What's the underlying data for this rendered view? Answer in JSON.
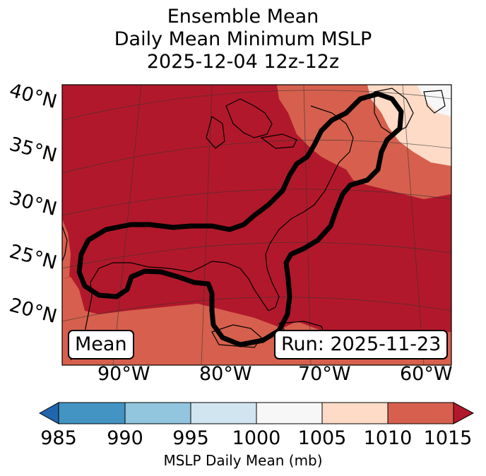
{
  "title": {
    "line1": "Ensemble Mean",
    "line2": "Daily Mean Minimum MSLP",
    "line3": "2025-12-04 12z-12z"
  },
  "latitude_labels": [
    "40°N",
    "35°N",
    "30°N",
    "25°N",
    "20°N"
  ],
  "longitude_labels": [
    "90°W",
    "80°W",
    "70°W",
    "60°W"
  ],
  "badges": {
    "left": "Mean",
    "right": "Run: 2025-11-23"
  },
  "colorbar": {
    "ticks": [
      "985",
      "990",
      "995",
      "1000",
      "1005",
      "1010",
      "1015"
    ],
    "label": "MSLP Daily Mean (mb)",
    "colors": [
      "#2166ac",
      "#4393c3",
      "#92c5de",
      "#d1e5f0",
      "#f7f7f7",
      "#fddbc7",
      "#d6604d",
      "#b2182b"
    ]
  },
  "fill_colors": {
    "dominant": "#b2182b",
    "secondary": "#d6604d",
    "light": "#fddbc7",
    "palest": "#f7f7f7"
  },
  "contour_color": "#000000"
}
